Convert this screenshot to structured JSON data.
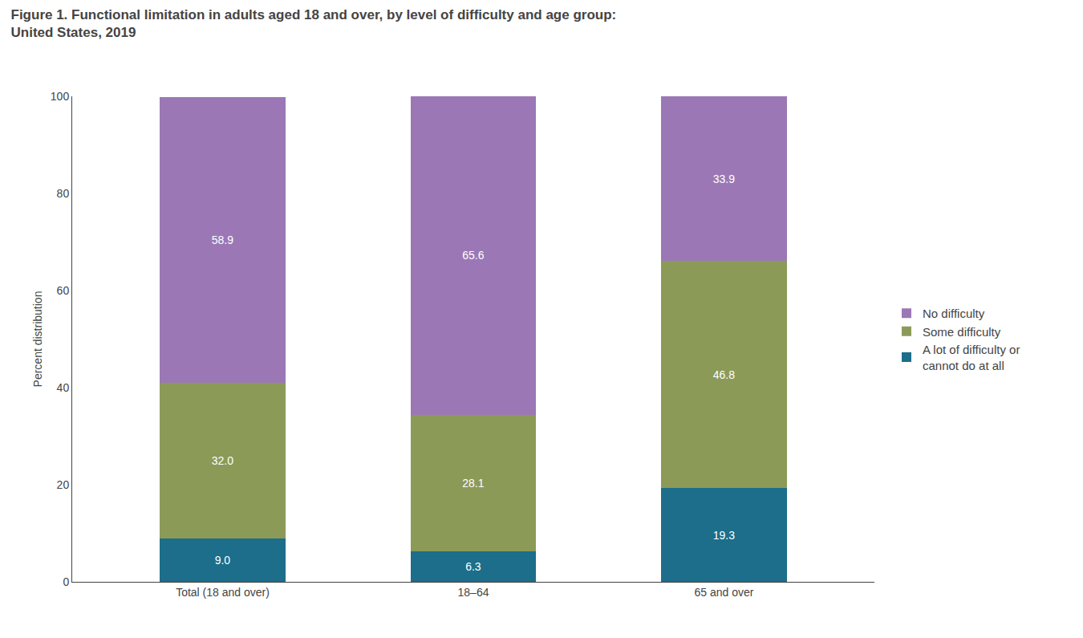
{
  "chart_data": {
    "type": "bar",
    "title": "Figure 1. Functional limitation in adults aged 18 and over, by level of difficulty and age group:\nUnited States, 2019",
    "categories": [
      "Total (18 and over)",
      "18–64",
      "65 and over"
    ],
    "series": [
      {
        "name": "A lot of difficulty or\ncannot do at all",
        "color": "#1c6e8a",
        "values": [
          9.0,
          6.3,
          19.3
        ],
        "value_labels": [
          "9.0",
          "6.3",
          "19.3"
        ]
      },
      {
        "name": "Some difficulty",
        "color": "#8c9a58",
        "values": [
          32.0,
          28.1,
          46.8
        ],
        "value_labels": [
          "32.0",
          "28.1",
          "46.8"
        ]
      },
      {
        "name": "No difficulty",
        "color": "#9b78b5",
        "values": [
          58.9,
          65.6,
          33.9
        ],
        "value_labels": [
          "58.9",
          "65.6",
          "33.9"
        ]
      }
    ],
    "ylabel": "Percent distribution",
    "ylim": [
      0,
      100
    ],
    "yticks": [
      0,
      20,
      40,
      60,
      80,
      100
    ],
    "stacked": true,
    "data_labels": true,
    "grid": false,
    "legend": "right"
  }
}
